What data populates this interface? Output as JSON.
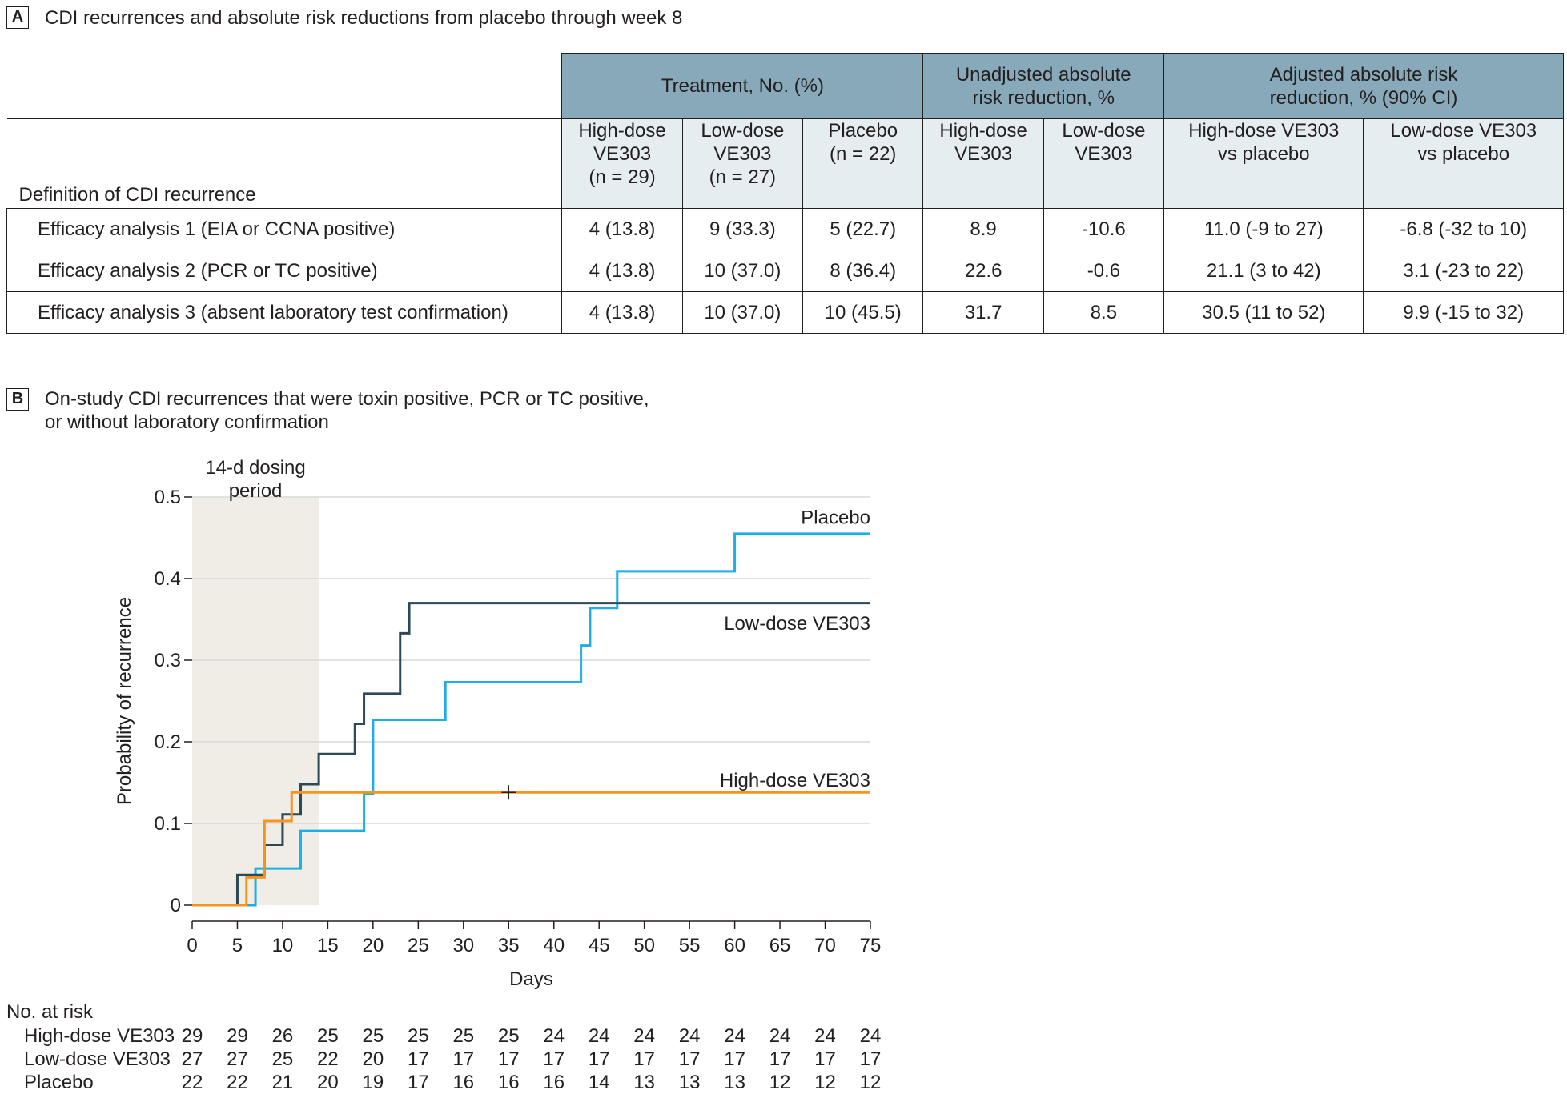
{
  "panel_a": {
    "label": "A",
    "title": "CDI recurrences and absolute risk reductions from placebo through week 8",
    "header": {
      "treatment": "Treatment, No. (%)",
      "unadjusted": "Unadjusted absolute\nrisk reduction, %",
      "adjusted": "Adjusted absolute risk\nreduction, % (90% CI)",
      "definition": "Definition of CDI recurrence",
      "subcols": [
        "High-dose\nVE303\n(n = 29)",
        "Low-dose\nVE303\n(n = 27)",
        "Placebo\n(n = 22)",
        "High-dose\nVE303",
        "Low-dose\nVE303",
        "High-dose VE303\nvs placebo",
        "Low-dose VE303\nvs placebo"
      ]
    },
    "rows": [
      [
        "Efficacy analysis 1 (EIA or CCNA positive)",
        "4 (13.8)",
        "9 (33.3)",
        "5 (22.7)",
        "8.9",
        "-10.6",
        "11.0 (-9 to 27)",
        "-6.8 (-32 to 10)"
      ],
      [
        "Efficacy analysis 2 (PCR or TC positive)",
        "4 (13.8)",
        "10 (37.0)",
        "8 (36.4)",
        "22.6",
        "-0.6",
        "21.1 (3 to 42)",
        "3.1 (-23 to 22)"
      ],
      [
        "Efficacy analysis 3 (absent laboratory test confirmation)",
        "4 (13.8)",
        "10 (37.0)",
        "10 (45.5)",
        "31.7",
        "8.5",
        "30.5 (11 to 52)",
        "9.9 (-15 to 32)"
      ]
    ]
  },
  "panel_b": {
    "label": "B",
    "title": "On-study CDI recurrences that were toxin positive, PCR or TC positive,\nor without laboratory confirmation",
    "shade_label": [
      "14-d dosing",
      "period"
    ],
    "risk_table": {
      "title": "No. at risk",
      "rows": [
        {
          "label": "High-dose VE303",
          "values": [
            "29",
            "29",
            "26",
            "25",
            "25",
            "25",
            "25",
            "25",
            "24",
            "24",
            "24",
            "24",
            "24",
            "24",
            "24",
            "24"
          ]
        },
        {
          "label": "Low-dose VE303",
          "values": [
            "27",
            "27",
            "25",
            "22",
            "20",
            "17",
            "17",
            "17",
            "17",
            "17",
            "17",
            "17",
            "17",
            "17",
            "17",
            "17"
          ]
        },
        {
          "label": "Placebo",
          "values": [
            "22",
            "22",
            "21",
            "20",
            "19",
            "17",
            "16",
            "16",
            "16",
            "14",
            "13",
            "13",
            "13",
            "12",
            "12",
            "12"
          ]
        }
      ]
    }
  },
  "chart_data": {
    "type": "line",
    "step": true,
    "xlabel": "Days",
    "ylabel": "Probability of recurrence",
    "xlim": [
      0,
      75
    ],
    "ylim": [
      0,
      0.5
    ],
    "xticks": [
      "0",
      "5",
      "10",
      "15",
      "20",
      "25",
      "30",
      "35",
      "40",
      "45",
      "50",
      "55",
      "60",
      "65",
      "70",
      "75"
    ],
    "yticks": [
      "0",
      "0.1",
      "0.2",
      "0.3",
      "0.4",
      "0.5"
    ],
    "grid": true,
    "shaded_region": {
      "x": [
        0,
        14
      ],
      "label": "14-d dosing period"
    },
    "series": [
      {
        "name": "Placebo",
        "color": "#1eaee4",
        "x": [
          0,
          7,
          12,
          19,
          20,
          28,
          43,
          44,
          47,
          60,
          75
        ],
        "y": [
          0,
          0.045,
          0.091,
          0.136,
          0.227,
          0.273,
          0.318,
          0.364,
          0.409,
          0.455,
          0.455
        ]
      },
      {
        "name": "Low-dose VE303",
        "color": "#2d4856",
        "x": [
          0,
          5,
          8,
          10,
          11,
          12,
          14,
          18,
          19,
          23,
          24,
          75
        ],
        "y": [
          0,
          0.037,
          0.074,
          0.111,
          0.111,
          0.148,
          0.185,
          0.222,
          0.259,
          0.333,
          0.37,
          0.37
        ]
      },
      {
        "name": "High-dose VE303",
        "color": "#f7941d",
        "x": [
          0,
          6,
          7,
          8,
          10,
          11,
          75
        ],
        "y": [
          0,
          0.034,
          0.034,
          0.103,
          0.103,
          0.138,
          0.138
        ],
        "censor_x": [
          35
        ]
      }
    ]
  }
}
